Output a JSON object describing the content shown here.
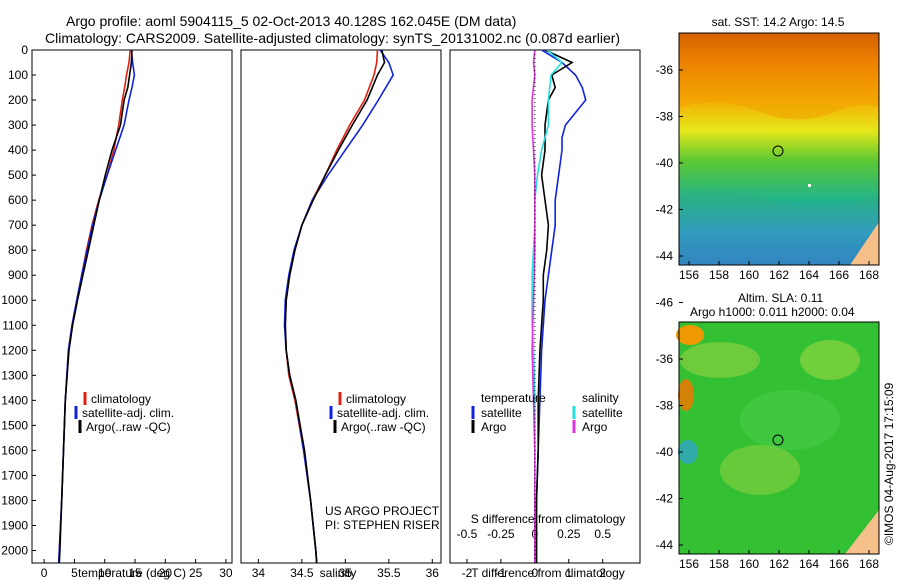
{
  "header": {
    "line1": "Argo profile: aoml 5904115_5 02-Oct-2013 40.128S 162.045E (DM data)",
    "line2": "Climatology: CARS2009. Satellite-adjusted climatology: synTS_20131002.nc (0.087d earlier)"
  },
  "colors": {
    "climatology": "#dd2211",
    "satellite": "#1122dd",
    "argo": "#000000",
    "sal_satellite": "#22dddd",
    "sal_argo": "#dd33dd"
  },
  "panels": {
    "temperature": {
      "xlabel": "temperature (deg C)",
      "legend": [
        "climatology",
        "satellite-adj. clim.",
        "Argo(..raw -QC)"
      ]
    },
    "salinity": {
      "xlabel": "salinity",
      "legend": [
        "climatology",
        "satellite-adj. clim.",
        "Argo(..raw -QC)"
      ],
      "note1": "US ARGO PROJECT",
      "note2": "PI: STEPHEN RISER"
    },
    "difference": {
      "xlabel": "T difference from climatology",
      "top_label": "S difference from climatology",
      "legend_head_t": "temperature",
      "legend_head_s": "salinity",
      "legend_t": [
        "satellite",
        "Argo"
      ],
      "legend_s": [
        "satellite",
        "Argo"
      ]
    }
  },
  "maps": {
    "sst": {
      "title": "sat. SST: 14.2  Argo: 14.5",
      "lat_ticks": [
        "-36",
        "-38",
        "-40",
        "-42",
        "-44",
        "-46"
      ],
      "lon_ticks": [
        "156",
        "158",
        "160",
        "162",
        "164",
        "166",
        "168"
      ]
    },
    "sla": {
      "title1": "Altim. SLA: 0.11",
      "title2": "Argo h1000: 0.011  h2000: 0.04",
      "lat_ticks": [
        "-36",
        "-38",
        "-40",
        "-42",
        "-44",
        "-46"
      ],
      "lon_ticks": [
        "156",
        "158",
        "160",
        "162",
        "164",
        "166",
        "168"
      ]
    },
    "credit": "©IMOS 04-Aug-2017 17:15:09"
  },
  "chart_data": [
    {
      "type": "line",
      "xlabel": "temperature (deg C)",
      "ylabel": "",
      "xlim": [
        -2,
        31
      ],
      "ylim": [
        2050,
        0
      ],
      "x_ticks": [
        0,
        5,
        10,
        15,
        20,
        25,
        30
      ],
      "y_ticks": [
        0,
        100,
        200,
        300,
        400,
        500,
        600,
        700,
        800,
        900,
        1000,
        1100,
        1200,
        1300,
        1400,
        1500,
        1600,
        1700,
        1800,
        1900,
        2000
      ],
      "series": [
        {
          "name": "climatology",
          "depth": [
            0,
            50,
            100,
            150,
            200,
            300,
            400,
            500,
            600,
            700,
            800,
            900,
            1000,
            1100,
            1200,
            1400,
            1600,
            1800,
            2000,
            2050
          ],
          "values": [
            14.2,
            14.0,
            13.6,
            13.3,
            12.9,
            12.3,
            11.5,
            10.4,
            9.0,
            7.9,
            7.0,
            6.2,
            5.4,
            4.6,
            4.0,
            3.5,
            3.2,
            2.9,
            2.5,
            2.4
          ]
        },
        {
          "name": "satellite-adj. clim.",
          "depth": [
            0,
            50,
            100,
            150,
            200,
            300,
            400,
            500,
            600,
            700,
            800,
            900,
            1000,
            1100,
            1200,
            1400,
            1600,
            1800,
            2000,
            2050
          ],
          "values": [
            14.4,
            14.6,
            14.9,
            14.5,
            14.0,
            13.2,
            11.8,
            10.4,
            9.1,
            8.0,
            7.1,
            6.2,
            5.4,
            4.6,
            4.0,
            3.5,
            3.2,
            2.9,
            2.5,
            2.4
          ]
        },
        {
          "name": "Argo(..raw -QC)",
          "depth": [
            0,
            50,
            100,
            150,
            200,
            300,
            400,
            500,
            600,
            700,
            800,
            900,
            1000,
            1100,
            1200,
            1400,
            1600,
            1800,
            2000,
            2050
          ],
          "values": [
            14.5,
            14.4,
            14.1,
            13.8,
            13.2,
            12.6,
            11.2,
            10.1,
            9.1,
            8.2,
            7.3,
            6.4,
            5.5,
            4.7,
            4.1,
            3.5,
            3.2,
            2.9,
            2.6,
            2.5
          ]
        }
      ]
    },
    {
      "type": "line",
      "xlabel": "salinity",
      "ylabel": "",
      "xlim": [
        33.8,
        36.1
      ],
      "ylim": [
        2050,
        0
      ],
      "x_ticks": [
        34,
        34.5,
        35,
        35.5,
        36
      ],
      "series": [
        {
          "name": "climatology",
          "depth": [
            0,
            50,
            100,
            200,
            300,
            400,
            500,
            600,
            700,
            800,
            900,
            1000,
            1100,
            1200,
            1300,
            1400,
            1600,
            1800,
            2000,
            2050
          ],
          "values": [
            35.37,
            35.36,
            35.33,
            35.22,
            35.05,
            34.9,
            34.77,
            34.62,
            34.5,
            34.42,
            34.36,
            34.32,
            34.31,
            34.32,
            34.35,
            34.42,
            34.52,
            34.6,
            34.66,
            34.67
          ]
        },
        {
          "name": "satellite-adj. clim.",
          "depth": [
            0,
            50,
            100,
            200,
            300,
            400,
            500,
            600,
            700,
            800,
            900,
            1000,
            1100,
            1200,
            1300,
            1400,
            1600,
            1800,
            2000,
            2050
          ],
          "values": [
            35.4,
            35.5,
            35.55,
            35.38,
            35.2,
            35.0,
            34.8,
            34.62,
            34.5,
            34.41,
            34.35,
            34.31,
            34.3,
            34.32,
            34.36,
            34.43,
            34.52,
            34.6,
            34.66,
            34.67
          ]
        },
        {
          "name": "Argo(..raw -QC)",
          "depth": [
            0,
            50,
            100,
            200,
            300,
            400,
            500,
            600,
            700,
            800,
            900,
            1000,
            1100,
            1200,
            1300,
            1400,
            1600,
            1800,
            2000,
            2050
          ],
          "values": [
            35.42,
            35.45,
            35.37,
            35.25,
            35.08,
            34.92,
            34.77,
            34.63,
            34.5,
            34.42,
            34.36,
            34.32,
            34.31,
            34.32,
            34.36,
            34.43,
            34.53,
            34.6,
            34.66,
            34.67
          ]
        }
      ]
    },
    {
      "type": "line",
      "xlabel": "T difference from climatology",
      "ylabel": "",
      "xlim": [
        -2.5,
        3.1
      ],
      "ylim": [
        2050,
        0
      ],
      "x_ticks": [
        -2,
        -1,
        0,
        1,
        2
      ],
      "top_ticks": [
        "-0.5",
        "-0.25",
        "0",
        "0.25",
        "0.5"
      ],
      "series": [
        {
          "name": "temperature satellite",
          "depth": [
            0,
            50,
            100,
            150,
            200,
            250,
            300,
            350,
            400,
            500,
            600,
            700,
            800,
            900,
            1000,
            1200,
            1400,
            1600,
            1800,
            2000,
            2050
          ],
          "values": [
            0.2,
            0.8,
            1.2,
            1.4,
            1.5,
            1.2,
            0.9,
            0.8,
            0.8,
            0.7,
            0.6,
            0.6,
            0.5,
            0.4,
            0.3,
            0.2,
            0.15,
            0.1,
            0.05,
            0.05,
            0.05
          ]
        },
        {
          "name": "temperature Argo",
          "depth": [
            0,
            50,
            100,
            150,
            200,
            300,
            400,
            500,
            600,
            700,
            800,
            900,
            1000,
            1200,
            1400,
            1600,
            1800,
            2000,
            2050
          ],
          "values": [
            0.3,
            1.1,
            0.5,
            0.6,
            0.4,
            0.3,
            0.3,
            0.2,
            0.3,
            0.4,
            0.35,
            0.25,
            0.25,
            0.15,
            0.1,
            0.1,
            0.05,
            0.05,
            0.05
          ]
        },
        {
          "name": "salinity satellite",
          "depth": [
            0,
            50,
            100,
            200,
            300,
            400,
            500,
            600,
            700,
            800,
            900,
            1000,
            1100,
            1200,
            1400,
            1600,
            1800,
            2000,
            2050
          ],
          "values": [
            0.09,
            0.2,
            0.12,
            0.1,
            0.1,
            0.05,
            0.02,
            0.0,
            0.0,
            -0.01,
            -0.02,
            -0.02,
            -0.02,
            -0.01,
            0.0,
            0.0,
            0.0,
            0.0,
            0.0
          ]
        },
        {
          "name": "salinity Argo",
          "depth": [
            0,
            50,
            100,
            200,
            300,
            400,
            500,
            600,
            700,
            800,
            1000,
            1200,
            1400,
            1600,
            1800,
            2000,
            2050
          ],
          "values": [
            0.0,
            -0.01,
            0.0,
            -0.02,
            -0.02,
            -0.01,
            0.0,
            0.0,
            0.0,
            0.0,
            -0.01,
            -0.02,
            -0.01,
            0.0,
            0.0,
            0.0,
            0.0
          ]
        }
      ]
    }
  ]
}
